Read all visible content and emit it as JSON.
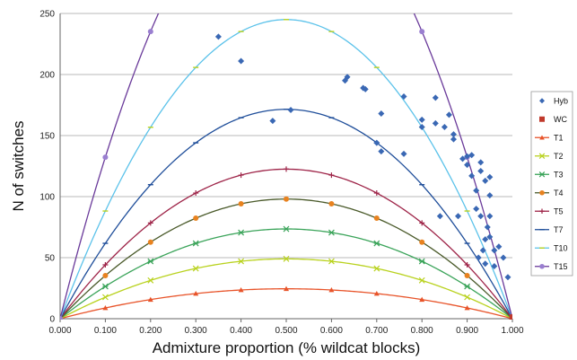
{
  "chart_data": {
    "type": "scatter",
    "xlabel": "Admixture proportion (% wildcat blocks)",
    "ylabel": "N of switches",
    "xlim": [
      0,
      1
    ],
    "ylim": [
      0,
      250
    ],
    "x_ticks": [
      "0.000",
      "0.100",
      "0.200",
      "0.300",
      "0.400",
      "0.500",
      "0.600",
      "0.700",
      "0.800",
      "0.900",
      "1.000"
    ],
    "y_ticks": [
      "0",
      "50",
      "100",
      "150",
      "200",
      "250"
    ],
    "grid": "horizontal",
    "legend_position": "right",
    "scatter_series": [
      {
        "name": "Hyb",
        "color": "#3a68b4",
        "marker": "diamond",
        "points": [
          [
            0.35,
            231
          ],
          [
            0.4,
            211
          ],
          [
            0.47,
            162
          ],
          [
            0.51,
            171
          ],
          [
            0.63,
            195
          ],
          [
            0.635,
            198
          ],
          [
            0.67,
            189
          ],
          [
            0.675,
            188
          ],
          [
            0.7,
            144
          ],
          [
            0.71,
            168
          ],
          [
            0.71,
            137
          ],
          [
            0.76,
            182
          ],
          [
            0.76,
            135
          ],
          [
            0.8,
            163
          ],
          [
            0.8,
            157
          ],
          [
            0.83,
            181
          ],
          [
            0.83,
            160
          ],
          [
            0.84,
            84
          ],
          [
            0.85,
            157
          ],
          [
            0.86,
            167
          ],
          [
            0.87,
            151
          ],
          [
            0.87,
            147
          ],
          [
            0.88,
            84
          ],
          [
            0.89,
            131
          ],
          [
            0.9,
            126
          ],
          [
            0.9,
            133
          ],
          [
            0.91,
            134
          ],
          [
            0.91,
            117
          ],
          [
            0.92,
            105
          ],
          [
            0.92,
            90
          ],
          [
            0.93,
            128
          ],
          [
            0.93,
            121
          ],
          [
            0.93,
            84
          ],
          [
            0.94,
            113
          ],
          [
            0.94,
            65
          ],
          [
            0.94,
            45
          ],
          [
            0.95,
            116
          ],
          [
            0.95,
            101
          ],
          [
            0.95,
            84
          ],
          [
            0.95,
            67
          ],
          [
            0.96,
            56
          ],
          [
            0.96,
            43
          ],
          [
            0.97,
            59
          ],
          [
            0.98,
            50
          ],
          [
            0.99,
            34
          ],
          [
            0.925,
            50
          ],
          [
            0.935,
            56
          ],
          [
            0.945,
            75
          ]
        ]
      },
      {
        "name": "WC",
        "color": "#c0392b",
        "marker": "square",
        "points": [
          [
            1.0,
            1
          ]
        ]
      }
    ],
    "curve_series": [
      {
        "name": "T1",
        "color": "#e8542a",
        "marker": "triangle",
        "peak": 24.5
      },
      {
        "name": "T2",
        "color": "#b9d21f",
        "marker": "x",
        "peak": 49
      },
      {
        "name": "T3",
        "color": "#3ba45a",
        "marker": "asterisk",
        "peak": 73.5
      },
      {
        "name": "T4",
        "color": "#4a5a2a",
        "marker": "circle",
        "marker_color": "#e8821f",
        "peak": 98
      },
      {
        "name": "T5",
        "color": "#9e2448",
        "marker": "plus",
        "peak": 122.5
      },
      {
        "name": "T7",
        "color": "#1f4e9a",
        "marker": "dash",
        "peak": 171.5
      },
      {
        "name": "T10",
        "color": "#5bc2ea",
        "marker": "dash",
        "marker_color": "#b9d21f",
        "peak": 245
      },
      {
        "name": "T15",
        "color": "#6a3a9a",
        "marker": "circle",
        "marker_color": "#9a7fd0",
        "peak": 367.5
      }
    ]
  }
}
